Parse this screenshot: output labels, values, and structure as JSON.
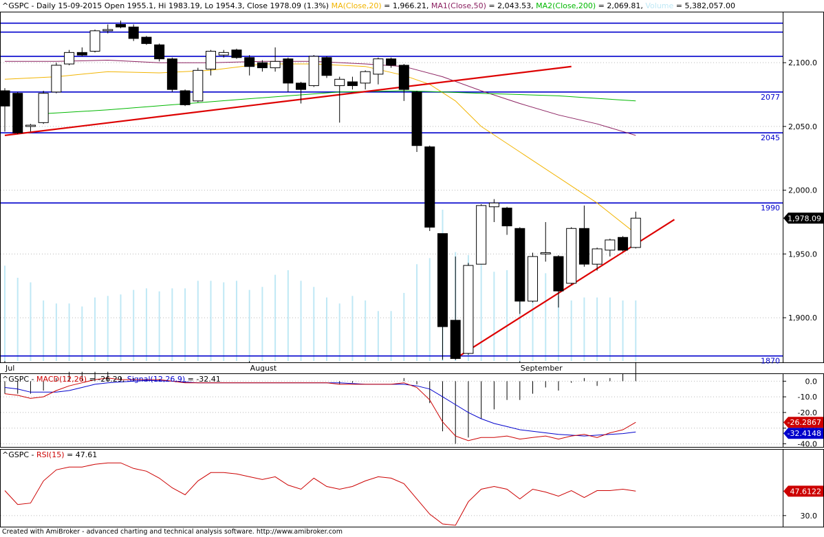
{
  "chart_data": {
    "type": "candlestick",
    "symbol": "^GSPC",
    "header": {
      "symbol": "^GSPC",
      "summary": "Daily 15-09-2015 Open 1955.1, Hi 1983.19, Lo 1954.3, Close 1978.09 (1.3%)",
      "ma_label": "MA(Close,20)",
      "ma_value": "= 1,966.21,",
      "ma1_label": "MA1(Close,50)",
      "ma1_value": "= 2,043.53,",
      "ma2_label": "MA2(Close,200)",
      "ma2_value": "= 2,069.81,",
      "volume_label": "Volume",
      "volume_value": "= 5,382,057.00"
    },
    "colors": {
      "ma20": "#f2b400",
      "ma50": "#8b2060",
      "ma200": "#00b800",
      "volume": "#bfe8f5",
      "hline": "#0000cc",
      "trend": "#dd0000",
      "macd": "#cc0000",
      "signal": "#0000cc",
      "rsi": "#cc0000",
      "grid": "#b8b8b8"
    },
    "ylim": [
      1865,
      2140
    ],
    "yticks": [
      "2,100.0",
      "2,050.0",
      "2,000.0",
      "1,950.0",
      "1,900.0"
    ],
    "ytick_values": [
      2100,
      2050,
      2000,
      1950,
      1900
    ],
    "xlabels": [
      {
        "label": "Jul",
        "index": 0
      },
      {
        "label": "August",
        "index": 19
      },
      {
        "label": "September",
        "index": 40
      }
    ],
    "candles": [
      {
        "o": 2078,
        "h": 2080,
        "l": 2046,
        "c": 2066
      },
      {
        "o": 2076,
        "h": 2077,
        "l": 2044,
        "c": 2045
      },
      {
        "o": 2050,
        "h": 2052,
        "l": 2046,
        "c": 2051
      },
      {
        "o": 2053,
        "h": 2078,
        "l": 2052,
        "c": 2076
      },
      {
        "o": 2077,
        "h": 2100,
        "l": 2076,
        "c": 2098
      },
      {
        "o": 2099,
        "h": 2110,
        "l": 2098,
        "c": 2108
      },
      {
        "o": 2108,
        "h": 2112,
        "l": 2105,
        "c": 2106
      },
      {
        "o": 2109,
        "h": 2126,
        "l": 2108,
        "c": 2125
      },
      {
        "o": 2125,
        "h": 2130,
        "l": 2123,
        "c": 2126
      },
      {
        "o": 2130,
        "h": 2133,
        "l": 2127,
        "c": 2128
      },
      {
        "o": 2128,
        "h": 2130,
        "l": 2117,
        "c": 2119
      },
      {
        "o": 2120,
        "h": 2121,
        "l": 2114,
        "c": 2115
      },
      {
        "o": 2114,
        "h": 2115,
        "l": 2101,
        "c": 2103
      },
      {
        "o": 2103,
        "h": 2104,
        "l": 2077,
        "c": 2079
      },
      {
        "o": 2078,
        "h": 2079,
        "l": 2066,
        "c": 2067
      },
      {
        "o": 2070,
        "h": 2096,
        "l": 2069,
        "c": 2094
      },
      {
        "o": 2095,
        "h": 2110,
        "l": 2090,
        "c": 2109
      },
      {
        "o": 2106,
        "h": 2110,
        "l": 2104,
        "c": 2108
      },
      {
        "o": 2110,
        "h": 2111,
        "l": 2103,
        "c": 2104
      },
      {
        "o": 2104,
        "h": 2106,
        "l": 2090,
        "c": 2097
      },
      {
        "o": 2100,
        "h": 2102,
        "l": 2093,
        "c": 2096
      },
      {
        "o": 2096,
        "h": 2112,
        "l": 2093,
        "c": 2101
      },
      {
        "o": 2103,
        "h": 2104,
        "l": 2077,
        "c": 2084
      },
      {
        "o": 2084,
        "h": 2085,
        "l": 2068,
        "c": 2079
      },
      {
        "o": 2082,
        "h": 2106,
        "l": 2081,
        "c": 2105
      },
      {
        "o": 2104,
        "h": 2105,
        "l": 2088,
        "c": 2090
      },
      {
        "o": 2082,
        "h": 2089,
        "l": 2053,
        "c": 2087
      },
      {
        "o": 2085,
        "h": 2089,
        "l": 2079,
        "c": 2082
      },
      {
        "o": 2084,
        "h": 2094,
        "l": 2079,
        "c": 2093
      },
      {
        "o": 2091,
        "h": 2104,
        "l": 2083,
        "c": 2103
      },
      {
        "o": 2103,
        "h": 2104,
        "l": 2096,
        "c": 2098
      },
      {
        "o": 2098,
        "h": 2099,
        "l": 2070,
        "c": 2079
      },
      {
        "o": 2077,
        "h": 2078,
        "l": 2030,
        "c": 2035
      },
      {
        "o": 2034,
        "h": 2035,
        "l": 1968,
        "c": 1971
      },
      {
        "o": 1966,
        "h": 1966,
        "l": 1867,
        "c": 1893
      },
      {
        "o": 1898,
        "h": 1948,
        "l": 1867,
        "c": 1868
      },
      {
        "o": 1872,
        "h": 1943,
        "l": 1871,
        "c": 1941
      },
      {
        "o": 1942,
        "h": 1989,
        "l": 1942,
        "c": 1988
      },
      {
        "o": 1987,
        "h": 1993,
        "l": 1975,
        "c": 1990
      },
      {
        "o": 1986,
        "h": 1987,
        "l": 1965,
        "c": 1972
      },
      {
        "o": 1970,
        "h": 1971,
        "l": 1903,
        "c": 1913
      },
      {
        "o": 1913,
        "h": 1951,
        "l": 1912,
        "c": 1948
      },
      {
        "o": 1950,
        "h": 1975,
        "l": 1944,
        "c": 1951
      },
      {
        "o": 1948,
        "h": 1949,
        "l": 1908,
        "c": 1921
      },
      {
        "o": 1927,
        "h": 1971,
        "l": 1926,
        "c": 1970
      },
      {
        "o": 1970,
        "h": 1988,
        "l": 1940,
        "c": 1942
      },
      {
        "o": 1942,
        "h": 1955,
        "l": 1937,
        "c": 1954
      },
      {
        "o": 1953,
        "h": 1962,
        "l": 1948,
        "c": 1961
      },
      {
        "o": 1963,
        "h": 1964,
        "l": 1952,
        "c": 1953
      },
      {
        "o": 1955.1,
        "h": 1983.19,
        "l": 1954.3,
        "c": 1978.09
      }
    ],
    "volume_level": [
      0.63,
      0.55,
      0.52,
      0.4,
      0.38,
      0.38,
      0.36,
      0.42,
      0.43,
      0.44,
      0.47,
      0.48,
      0.46,
      0.48,
      0.48,
      0.53,
      0.53,
      0.52,
      0.53,
      0.47,
      0.49,
      0.57,
      0.6,
      0.53,
      0.49,
      0.42,
      0.38,
      0.43,
      0.4,
      0.33,
      0.33,
      0.45,
      0.64,
      0.68,
      1.0,
      0.72,
      0.7,
      0.66,
      0.59,
      0.6,
      0.6,
      0.58,
      0.58,
      0.43,
      0.4,
      0.42,
      0.42,
      0.42,
      0.4,
      0.4
    ],
    "ma_lines": [
      {
        "name": "MA(Close,20)",
        "color_key": "ma20",
        "points": [
          [
            0,
            2087
          ],
          [
            4,
            2089
          ],
          [
            8,
            2093
          ],
          [
            12,
            2092
          ],
          [
            16,
            2094
          ],
          [
            20,
            2099
          ],
          [
            24,
            2099
          ],
          [
            28,
            2097
          ],
          [
            31,
            2090
          ],
          [
            33,
            2083
          ],
          [
            35,
            2070
          ],
          [
            37,
            2050
          ],
          [
            40,
            2030
          ],
          [
            43,
            2010
          ],
          [
            46,
            1990
          ],
          [
            49,
            1966
          ]
        ]
      },
      {
        "name": "MA1(Close,50)",
        "color_key": "ma50",
        "points": [
          [
            0,
            2101
          ],
          [
            4,
            2101
          ],
          [
            8,
            2102
          ],
          [
            12,
            2100
          ],
          [
            16,
            2100
          ],
          [
            20,
            2101
          ],
          [
            24,
            2101
          ],
          [
            28,
            2099
          ],
          [
            31,
            2097
          ],
          [
            34,
            2089
          ],
          [
            37,
            2078
          ],
          [
            40,
            2068
          ],
          [
            43,
            2059
          ],
          [
            46,
            2052
          ],
          [
            49,
            2043
          ]
        ]
      },
      {
        "name": "MA2(Close,200)",
        "color_key": "ma200",
        "points": [
          [
            3,
            2060
          ],
          [
            8,
            2063
          ],
          [
            13,
            2067
          ],
          [
            18,
            2071
          ],
          [
            22,
            2074
          ],
          [
            26,
            2077
          ],
          [
            31,
            2078
          ],
          [
            34,
            2077
          ],
          [
            37,
            2076
          ],
          [
            40,
            2075
          ],
          [
            43,
            2074
          ],
          [
            46,
            2072
          ],
          [
            49,
            2070
          ]
        ]
      }
    ],
    "trend_lines": [
      {
        "from": [
          0,
          2043
        ],
        "to": [
          44,
          2097
        ]
      },
      {
        "from": [
          35,
          1868
        ],
        "to": [
          52,
          1977
        ]
      }
    ],
    "hlines": [
      {
        "value": 2131,
        "label": ""
      },
      {
        "value": 2124,
        "label": ""
      },
      {
        "value": 2105,
        "label": ""
      },
      {
        "value": 2077,
        "label": "2077"
      },
      {
        "value": 2045,
        "label": "2045"
      },
      {
        "value": 1990,
        "label": "1990"
      },
      {
        "value": 1870,
        "label": "1870"
      }
    ],
    "last_price": "1,978.09",
    "macd": {
      "header_symbol": "^GSPC",
      "macd_label": "MACD(12,26)",
      "macd_value": "= -26.29,",
      "signal_label": "Signal(12,26,9)",
      "signal_value": "= -32.41",
      "ylim": [
        -42,
        5
      ],
      "yticks": [
        "0.0",
        "-10.0",
        "-20.0",
        "-30.0",
        "-40.0"
      ],
      "ytick_values": [
        0,
        -10,
        -20,
        -30,
        -40
      ],
      "macd_line": [
        -8,
        -9,
        -11,
        -10,
        -6,
        -3,
        -1,
        1,
        2,
        1,
        1,
        1,
        1,
        0,
        -1,
        -1,
        -1,
        -1,
        -1,
        -1,
        -1,
        -1,
        -1,
        -1,
        -1,
        -1,
        -2,
        -2,
        -2,
        -2,
        -2,
        -1,
        -4,
        -12,
        -26,
        -35,
        -38,
        -36,
        -36,
        -35,
        -37,
        -36,
        -35,
        -37,
        -35,
        -34,
        -36,
        -33,
        -31,
        -26.29
      ],
      "signal_line": [
        -4,
        -5,
        -7,
        -7,
        -7,
        -6,
        -4,
        -2,
        -1,
        -0.5,
        0,
        0.5,
        0.3,
        0,
        -0.5,
        -1,
        -1,
        -1,
        -1,
        -1,
        -1,
        -1,
        -1,
        -1,
        -1,
        -1,
        -1,
        -1.5,
        -2,
        -2,
        -2,
        -2,
        -3,
        -5,
        -10,
        -15,
        -20,
        -24,
        -27,
        -29,
        -31,
        -32,
        -33,
        -34,
        -34.5,
        -35,
        -34.5,
        -34,
        -33.5,
        -32.41
      ],
      "last_macd": "-26.2867",
      "last_signal": "-32.4148"
    },
    "rsi": {
      "header_symbol": "^GSPC",
      "label": "RSI(15)",
      "value": "= 47.61",
      "ylim": [
        22,
        78
      ],
      "yticks": [
        "30.0"
      ],
      "ytick_values": [
        30
      ],
      "points": [
        48,
        38,
        39,
        55,
        63,
        65,
        65,
        67,
        68,
        68,
        64,
        62,
        57,
        50,
        45,
        55,
        61,
        61,
        60,
        58,
        56,
        58,
        52,
        49,
        57,
        51,
        49,
        51,
        55,
        58,
        57,
        53,
        42,
        31,
        24,
        23,
        40,
        49,
        51,
        49,
        42,
        49,
        47,
        44,
        48,
        43,
        48,
        48,
        49,
        47.61
      ],
      "last": "47.6122"
    },
    "footer": "Created with AmiBroker - advanced charting and technical analysis software. http://www.amibroker.com"
  }
}
